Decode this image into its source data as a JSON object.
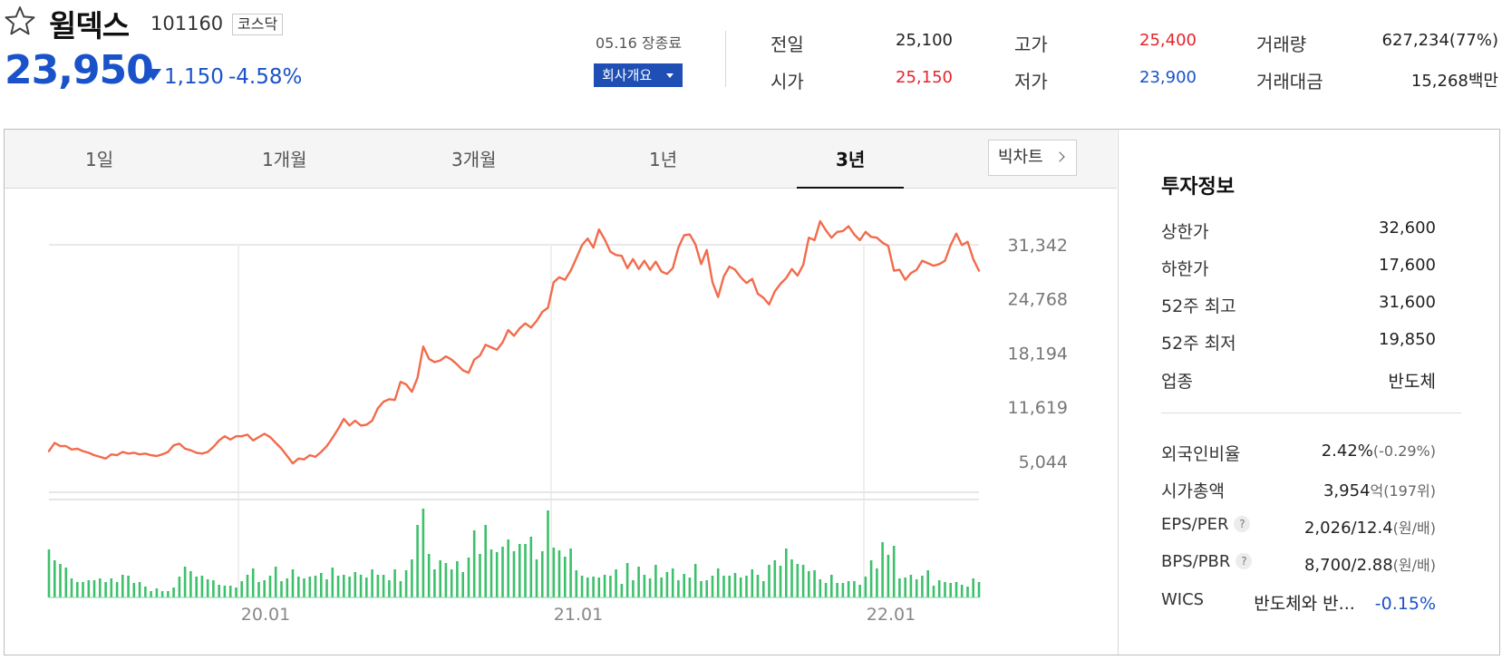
{
  "stock": {
    "name": "윌덱스",
    "code": "101160",
    "market": "코스닥",
    "price": "23,950",
    "change": "1,150",
    "change_pct": "-4.58%",
    "direction": "down"
  },
  "session": {
    "date_status": "05.16 장종료",
    "company_button": "회사개요"
  },
  "summary": {
    "prev_close_label": "전일",
    "prev_close": "25,100",
    "open_label": "시가",
    "open": "25,150",
    "high_label": "고가",
    "high": "25,400",
    "low_label": "저가",
    "low": "23,900",
    "volume_label": "거래량",
    "volume": "627,234(77%)",
    "amount_label": "거래대금",
    "amount": "15,268",
    "amount_unit": "백만"
  },
  "tabs": [
    {
      "label": "1일"
    },
    {
      "label": "1개월"
    },
    {
      "label": "3개월"
    },
    {
      "label": "1년"
    },
    {
      "label": "3년",
      "active": true
    }
  ],
  "big_chart_button": "빅차트",
  "investment": {
    "title": "투자정보",
    "upper_limit_label": "상한가",
    "upper_limit": "32,600",
    "lower_limit_label": "하한가",
    "lower_limit": "17,600",
    "high52_label": "52주 최고",
    "high52": "31,600",
    "low52_label": "52주 최저",
    "low52": "19,850",
    "sector_label": "업종",
    "sector": "반도체",
    "foreign_label": "외국인비율",
    "foreign": "2.42%",
    "foreign_change": "(-0.29%)",
    "mktcap_label": "시가총액",
    "mktcap": "3,954",
    "mktcap_unit": "억",
    "mktcap_rank": "(197위)",
    "eps_per_label": "EPS/PER",
    "eps_per": "2,026/12.4",
    "eps_per_unit": "(원/배)",
    "bps_pbr_label": "BPS/PBR",
    "bps_pbr": "8,700/2.88",
    "bps_pbr_unit": "(원/배)",
    "wics_label": "WICS",
    "wics": "반도체와 반...",
    "wics_change": "-0.15%"
  },
  "colors": {
    "up": "#e3262d",
    "down": "#1a52c9",
    "line": "#f26b4c",
    "volume": "#3dc06b"
  },
  "chart_data": {
    "type": "line",
    "period": "3년",
    "y_ticks": [
      31342,
      24768,
      18194,
      11619,
      5044
    ],
    "ylim": [
      5044,
      31342
    ],
    "x_ticks": [
      "20.01",
      "21.01",
      "22.01"
    ],
    "series": [
      {
        "values": [
          6300,
          7300,
          6900,
          6900,
          6500,
          6600,
          6300,
          6100,
          5800,
          5600,
          5400,
          5900,
          5800,
          6200,
          6000,
          6100,
          5900,
          6000,
          5800,
          5700,
          5900,
          6200,
          7000,
          7200,
          6600,
          6400,
          6100,
          6000,
          6200,
          6800,
          7600,
          8100,
          7700,
          8100,
          8100,
          8300,
          7600,
          8000,
          8400,
          8000,
          7300,
          6600,
          5700,
          4800,
          5400,
          5300,
          5800,
          5600,
          6200,
          6900,
          7900,
          9000,
          10200,
          9400,
          10000,
          9400,
          9500,
          10000,
          11500,
          12300,
          12600,
          12500,
          14700,
          14400,
          13500,
          15200,
          19000,
          17500,
          17100,
          17300,
          17800,
          17400,
          16800,
          16100,
          15800,
          17400,
          17900,
          19200,
          18900,
          18600,
          19500,
          21000,
          20300,
          21200,
          21800,
          21300,
          22100,
          23200,
          23700,
          26800,
          27400,
          27100,
          28200,
          29700,
          31300,
          32100,
          31000,
          33200,
          32000,
          30500,
          30100,
          30000,
          28500,
          29600,
          28400,
          29400,
          28300,
          29300,
          28100,
          27800,
          28500,
          31000,
          32500,
          32600,
          31400,
          29000,
          30700,
          26800,
          25000,
          27500,
          28700,
          28300,
          27400,
          26700,
          27200,
          25400,
          24900,
          24100,
          25700,
          26600,
          27300,
          28400,
          27600,
          28900,
          32200,
          31900,
          34200,
          33100,
          32200,
          32900,
          33000,
          33600,
          32600,
          31900,
          32900,
          32300,
          32200,
          31600,
          31200,
          28200,
          28300,
          27100,
          27900,
          28300,
          29400,
          29100,
          28800,
          29000,
          29400,
          31300,
          32700,
          31300,
          31700,
          29600,
          28200
        ]
      }
    ],
    "volume_values": [
      53,
      41,
      37,
      33,
      21,
      17,
      17,
      19,
      19,
      21,
      17,
      21,
      17,
      25,
      24,
      16,
      17,
      12,
      7,
      10,
      7,
      7,
      11,
      23,
      34,
      29,
      23,
      24,
      20,
      19,
      14,
      13,
      13,
      11,
      18,
      25,
      32,
      17,
      19,
      24,
      34,
      18,
      21,
      31,
      23,
      21,
      23,
      24,
      27,
      20,
      33,
      24,
      25,
      23,
      28,
      25,
      22,
      31,
      25,
      25,
      19,
      31,
      18,
      30,
      42,
      80,
      98,
      48,
      31,
      41,
      38,
      31,
      40,
      28,
      44,
      74,
      48,
      80,
      53,
      50,
      56,
      64,
      51,
      59,
      59,
      67,
      42,
      51,
      96,
      55,
      52,
      45,
      54,
      30,
      24,
      22,
      23,
      22,
      25,
      24,
      31,
      15,
      38,
      19,
      34,
      25,
      21,
      36,
      22,
      28,
      32,
      19,
      26,
      22,
      37,
      18,
      19,
      24,
      32,
      24,
      24,
      27,
      22,
      24,
      31,
      25,
      18,
      36,
      41,
      35,
      54,
      42,
      37,
      36,
      29,
      30,
      20,
      16,
      25,
      16,
      16,
      18,
      18,
      14,
      23,
      41,
      32,
      61,
      47,
      57,
      21,
      22,
      25,
      20,
      24,
      30,
      13,
      19,
      17,
      16,
      17,
      14,
      12,
      21,
      17
    ]
  }
}
